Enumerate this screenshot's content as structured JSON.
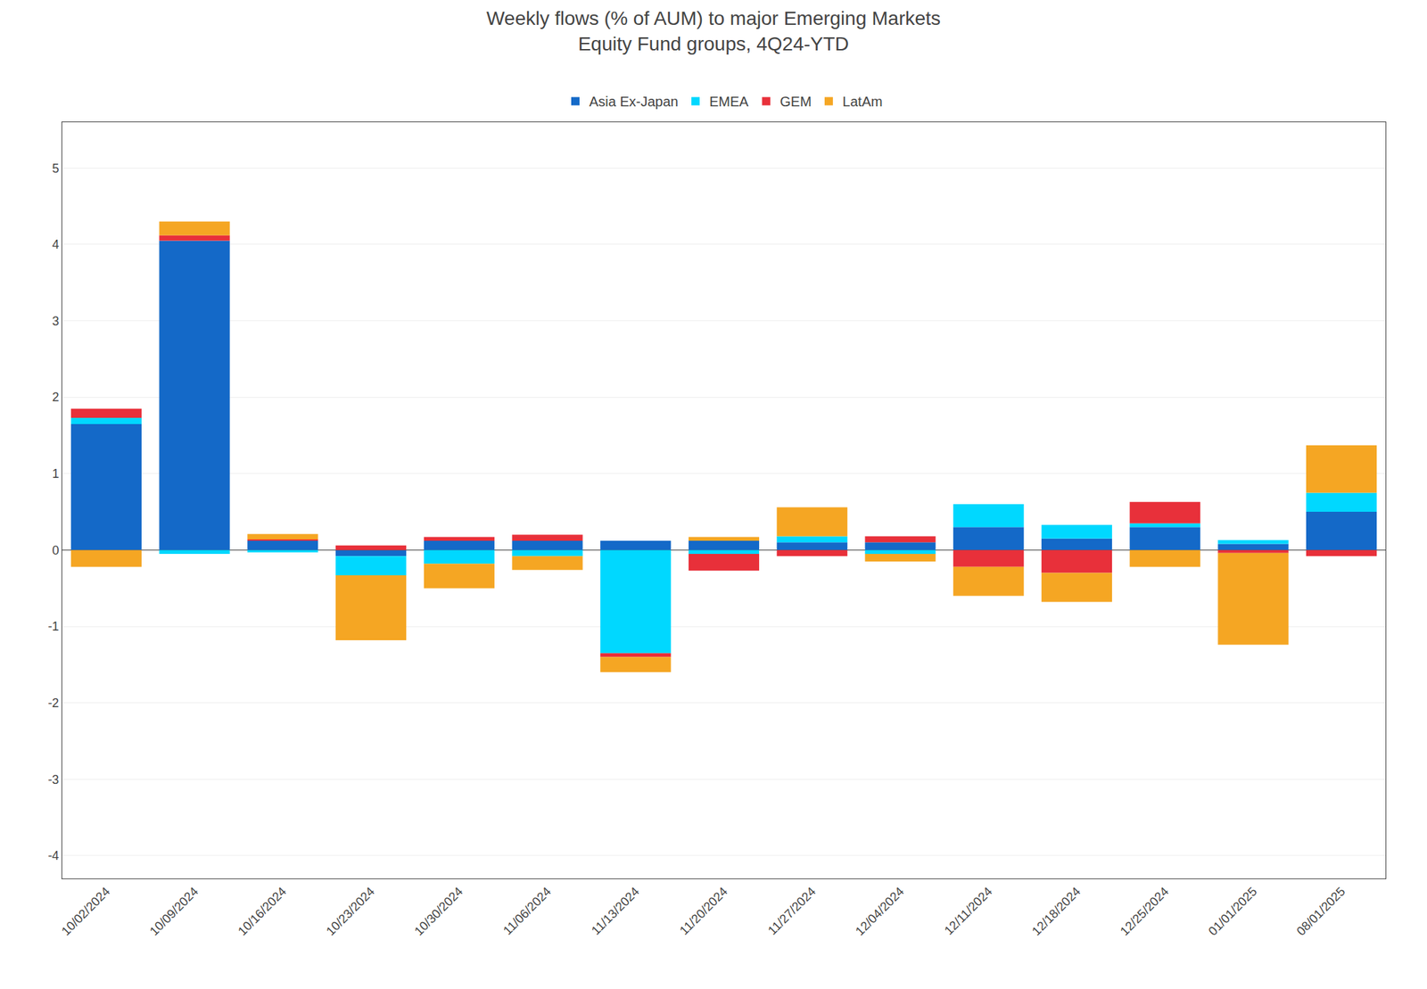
{
  "chart_data": {
    "type": "bar",
    "title": "Weekly flows (% of AUM) to major Emerging Markets\nEquity Fund groups, 4Q24-YTD",
    "categories": [
      "10/02/2024",
      "10/09/2024",
      "10/16/2024",
      "10/23/2024",
      "10/30/2024",
      "11/06/2024",
      "11/13/2024",
      "11/20/2024",
      "11/27/2024",
      "12/04/2024",
      "12/11/2024",
      "12/18/2024",
      "12/25/2024",
      "01/01/2025",
      "08/01/2025"
    ],
    "series": [
      {
        "name": "Asia Ex-Japan",
        "color": "#1469C8",
        "values": [
          1.65,
          4.05,
          0.12,
          -0.08,
          0.12,
          0.12,
          0.12,
          0.12,
          0.1,
          0.1,
          0.3,
          0.15,
          0.3,
          0.08,
          0.5
        ]
      },
      {
        "name": "EMEA",
        "color": "#00D8FF",
        "values": [
          0.08,
          -0.05,
          -0.03,
          -0.25,
          -0.18,
          -0.08,
          -1.35,
          -0.05,
          0.08,
          -0.05,
          0.3,
          0.18,
          0.05,
          0.05,
          0.25
        ]
      },
      {
        "name": "GEM",
        "color": "#E8303A",
        "values": [
          0.12,
          0.07,
          0.02,
          0.06,
          0.05,
          0.08,
          -0.05,
          -0.22,
          -0.08,
          0.08,
          -0.22,
          -0.3,
          0.28,
          -0.04,
          -0.08
        ]
      },
      {
        "name": "LatAm",
        "color": "#F5A623",
        "values": [
          -0.22,
          0.18,
          0.07,
          -0.85,
          -0.32,
          -0.18,
          -0.2,
          0.05,
          0.38,
          -0.1,
          -0.38,
          -0.38,
          -0.22,
          -1.2,
          0.62
        ]
      }
    ],
    "stacked": true,
    "ylim": [
      -4.3,
      5.6
    ],
    "yticks": [
      -4,
      -3,
      -2,
      -1,
      0,
      1,
      2,
      3,
      4,
      5
    ],
    "grid": true,
    "legend": "top"
  }
}
